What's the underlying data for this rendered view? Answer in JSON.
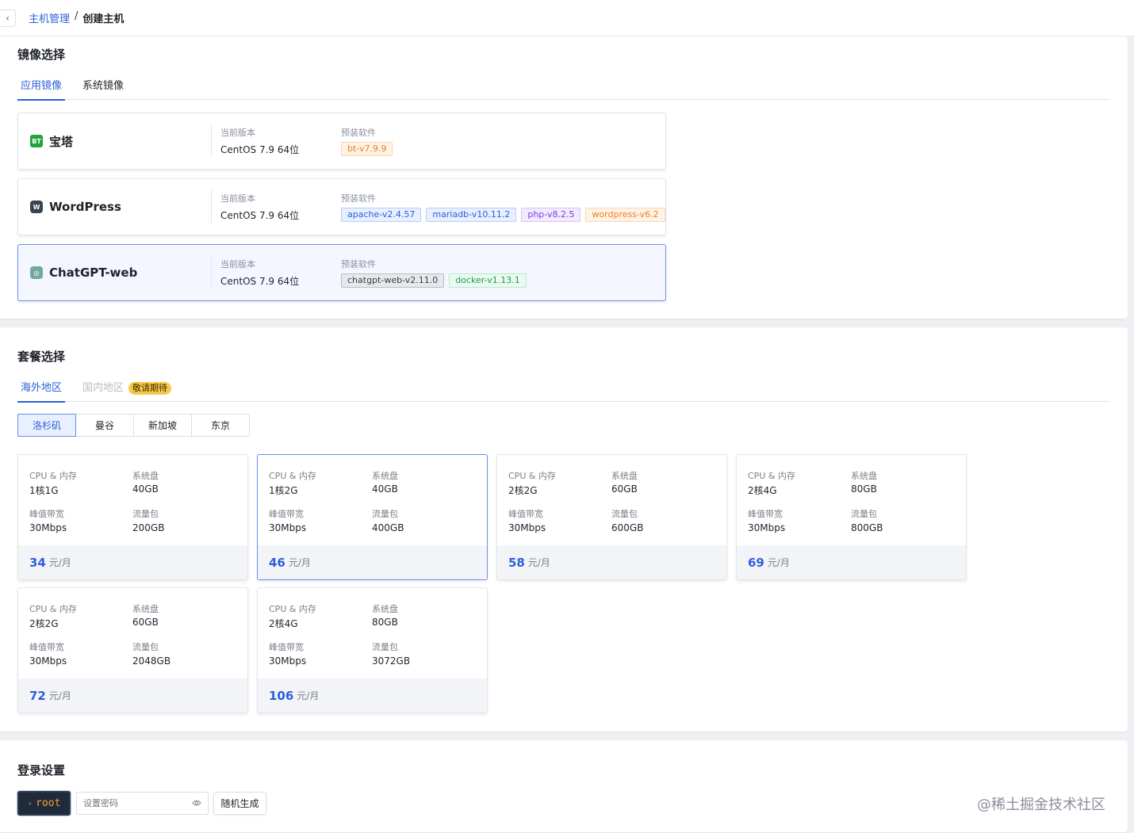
{
  "breadcrumb": {
    "back": "‹",
    "parent": "主机管理",
    "separator": "/",
    "current": "创建主机"
  },
  "image_section": {
    "title": "镜像选择",
    "tabs": [
      {
        "label": "应用镜像"
      },
      {
        "label": "系统镜像"
      }
    ],
    "version_label": "当前版本",
    "software_label": "预装软件",
    "images": [
      {
        "name": "宝塔",
        "logo_text": "BT",
        "version": "CentOS 7.9 64位",
        "software": [
          {
            "name": "bt-v7.9.9",
            "color": "orange"
          }
        ]
      },
      {
        "name": "WordPress",
        "logo_text": "W",
        "version": "CentOS 7.9 64位",
        "software": [
          {
            "name": "apache-v2.4.57",
            "color": "blue"
          },
          {
            "name": "mariadb-v10.11.2",
            "color": "blue"
          },
          {
            "name": "php-v8.2.5",
            "color": "purple"
          },
          {
            "name": "wordpress-v6.2",
            "color": "orange"
          }
        ]
      },
      {
        "name": "ChatGPT-web",
        "logo_text": "◎",
        "version": "CentOS 7.9 64位",
        "software": [
          {
            "name": "chatgpt-web-v2.11.0",
            "color": "gray"
          },
          {
            "name": "docker-v1.13.1",
            "color": "green"
          }
        ]
      }
    ]
  },
  "plan_section": {
    "title": "套餐选择",
    "tabs": [
      {
        "label": "海外地区"
      },
      {
        "label": "国内地区",
        "badge": "敬请期待"
      }
    ],
    "regions": [
      "洛杉矶",
      "曼谷",
      "新加坡",
      "东京"
    ],
    "labels": {
      "cpu": "CPU & 内存",
      "disk": "系统盘",
      "bandwidth": "峰值带宽",
      "traffic": "流量包",
      "unit": "元/月"
    },
    "plans": [
      {
        "cpu": "1核1G",
        "disk": "40GB",
        "bandwidth": "30Mbps",
        "traffic": "200GB",
        "price": "34"
      },
      {
        "cpu": "1核2G",
        "disk": "40GB",
        "bandwidth": "30Mbps",
        "traffic": "400GB",
        "price": "46"
      },
      {
        "cpu": "2核2G",
        "disk": "60GB",
        "bandwidth": "30Mbps",
        "traffic": "600GB",
        "price": "58"
      },
      {
        "cpu": "2核4G",
        "disk": "80GB",
        "bandwidth": "30Mbps",
        "traffic": "800GB",
        "price": "69"
      },
      {
        "cpu": "2核2G",
        "disk": "60GB",
        "bandwidth": "30Mbps",
        "traffic": "2048GB",
        "price": "72"
      },
      {
        "cpu": "2核4G",
        "disk": "80GB",
        "bandwidth": "30Mbps",
        "traffic": "3072GB",
        "price": "106"
      }
    ]
  },
  "login_section": {
    "title": "登录设置",
    "user_prompt": "›",
    "username": "root",
    "password_placeholder": "设置密码",
    "generate_button": "随机生成"
  },
  "watermark": "@稀土掘金技术社区"
}
